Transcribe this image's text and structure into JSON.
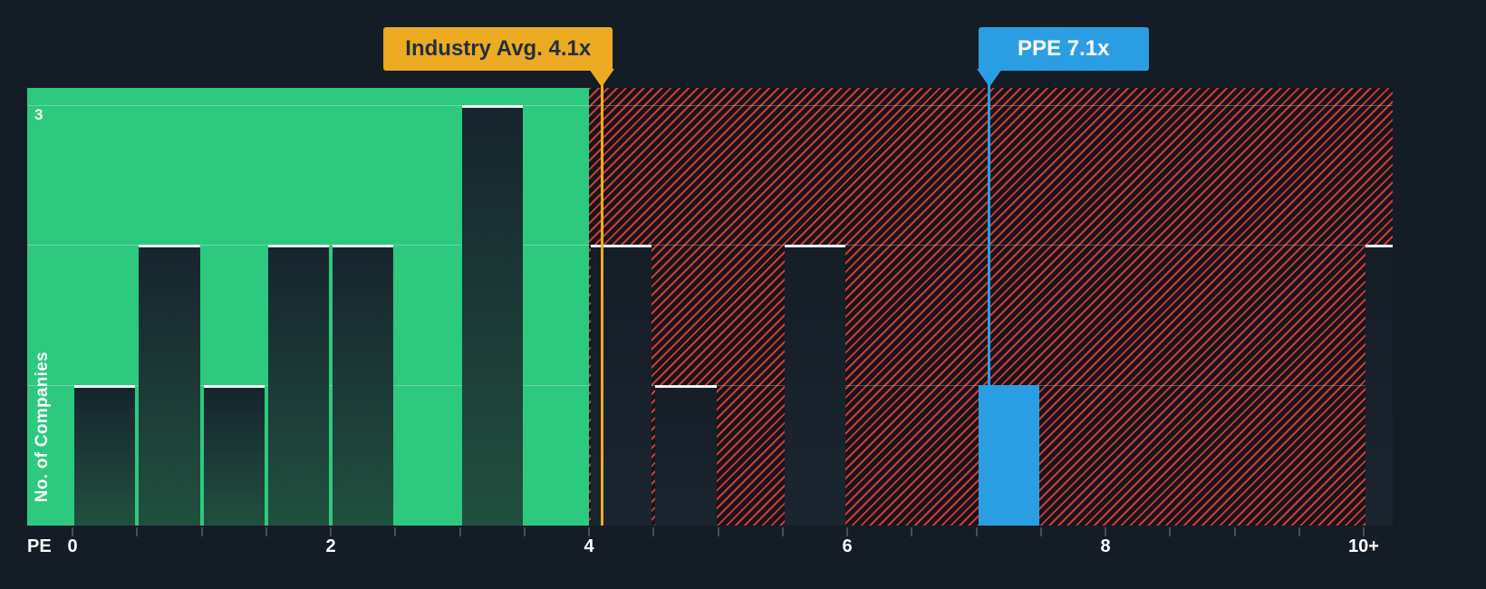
{
  "colors": {
    "background": "#141c26",
    "green_zone": "#2dc97e",
    "hatch_stripe": "#e54938",
    "industry_accent": "#edab21",
    "company_accent": "#2b9ee3",
    "bar_cap": "#ffffff",
    "text_light": "#ffffff",
    "text_dark": "#22303d"
  },
  "axes": {
    "x_title": "PE",
    "y_title": "No. of Companies",
    "y_top_label": "3"
  },
  "chart_data": {
    "type": "bar",
    "title": "Number of companies by PE ratio bucket vs industry average",
    "xlabel": "PE",
    "ylabel": "No. of Companies",
    "x_range": [
      -0.35,
      10.25
    ],
    "y_range": [
      0,
      3.12
    ],
    "bucket_width": 0.5,
    "grid": true,
    "x_ticks": [
      {
        "value": 0,
        "label": "0"
      },
      {
        "value": 2,
        "label": "2"
      },
      {
        "value": 4,
        "label": "4"
      },
      {
        "value": 6,
        "label": "6"
      },
      {
        "value": 8,
        "label": "8"
      },
      {
        "value": 10,
        "label": "10+"
      }
    ],
    "y_gridlines": [
      1,
      2,
      3
    ],
    "bars": [
      {
        "x_from": 0.0,
        "x_to": 0.5,
        "count": 1
      },
      {
        "x_from": 0.5,
        "x_to": 1.0,
        "count": 2
      },
      {
        "x_from": 1.0,
        "x_to": 1.5,
        "count": 1
      },
      {
        "x_from": 1.5,
        "x_to": 2.0,
        "count": 2
      },
      {
        "x_from": 2.0,
        "x_to": 2.5,
        "count": 2
      },
      {
        "x_from": 3.0,
        "x_to": 3.5,
        "count": 3
      },
      {
        "x_from": 4.0,
        "x_to": 4.5,
        "count": 2
      },
      {
        "x_from": 4.5,
        "x_to": 5.0,
        "count": 1
      },
      {
        "x_from": 5.5,
        "x_to": 6.0,
        "count": 2
      },
      {
        "x_from": 7.0,
        "x_to": 7.5,
        "count": 1,
        "highlight": "company"
      },
      {
        "x_from": 10.0,
        "x_to": 10.5,
        "count": 2
      }
    ],
    "regions": [
      {
        "id": "below-industry-average",
        "from": -0.35,
        "to": 4.0,
        "style": "green"
      },
      {
        "id": "above-industry-average",
        "from": 4.0,
        "to": 10.25,
        "style": "red-hatch"
      }
    ],
    "annotations": [
      {
        "id": "industry-average",
        "label": "Industry Avg. 4.1x",
        "x": 4.1,
        "line_to": "axis",
        "box_side": "left-of-line"
      },
      {
        "id": "company",
        "label": "PPE 7.1x",
        "x": 7.1,
        "line_to": "bar-top",
        "bar_count": 1,
        "box_side": "right-of-line"
      }
    ]
  }
}
